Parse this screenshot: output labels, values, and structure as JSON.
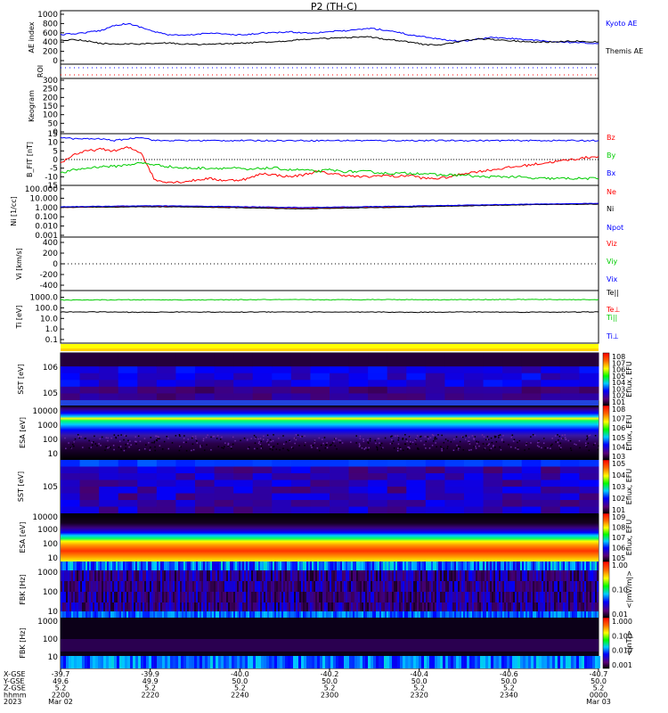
{
  "title": "P2 (TH-C)",
  "chart_data": [
    {
      "type": "line",
      "panel": "ae",
      "ylabel": "AE index",
      "ylim": [
        0,
        1000
      ],
      "yticks": [
        "1000",
        "800",
        "600",
        "400",
        "200",
        "0"
      ],
      "grid": false,
      "series": [
        {
          "name": "Kyoto AE",
          "color": "#0000ff",
          "values": [
            560,
            580,
            610,
            650,
            760,
            800,
            720,
            620,
            560,
            540,
            560,
            600,
            580,
            550,
            560,
            600,
            600,
            620,
            600,
            600,
            630,
            640,
            660,
            700,
            660,
            620,
            550,
            520,
            470,
            430,
            420,
            460,
            500,
            480,
            470,
            440,
            420,
            400,
            390,
            380,
            360
          ]
        },
        {
          "name": "Themis AE",
          "color": "#000000",
          "values": [
            430,
            460,
            420,
            370,
            360,
            360,
            360,
            370,
            380,
            360,
            350,
            350,
            360,
            370,
            380,
            400,
            410,
            430,
            460,
            470,
            480,
            490,
            500,
            510,
            470,
            440,
            400,
            350,
            330,
            380,
            430,
            470,
            460,
            440,
            420,
            400,
            400,
            410,
            420,
            420,
            400
          ]
        }
      ]
    },
    {
      "type": "line",
      "panel": "roi",
      "ylabel": "ROI"
    },
    {
      "type": "line",
      "panel": "keogram",
      "ylabel": "Keogram",
      "ylim": [
        0,
        300
      ],
      "yticks": [
        "300",
        "250",
        "200",
        "150",
        "100",
        "50",
        "0"
      ]
    },
    {
      "type": "line",
      "panel": "bfgm",
      "ylabel": "B_FIT [nT]",
      "ylim": [
        -15,
        15
      ],
      "yticks": [
        "15",
        "10",
        "5",
        "0",
        "-5",
        "-10",
        "-15"
      ],
      "series": [
        {
          "name": "Bz",
          "color": "#ff0000",
          "values": [
            -2,
            3,
            5,
            6,
            5,
            7,
            4,
            -12,
            -13,
            -13,
            -12,
            -11,
            -12,
            -12,
            -11,
            -8,
            -9,
            -10,
            -9,
            -7,
            -8,
            -9,
            -10,
            -10,
            -9,
            -10,
            -9,
            -11,
            -11,
            -10,
            -8,
            -7,
            -6,
            -5,
            -4,
            -3,
            -2,
            -1,
            0,
            1,
            2
          ]
        },
        {
          "name": "By",
          "color": "#00cc00",
          "values": [
            -8,
            -6,
            -5,
            -4,
            -4,
            -3,
            -2,
            -3,
            -4,
            -5,
            -5,
            -5,
            -5,
            -5,
            -6,
            -5,
            -5,
            -6,
            -6,
            -7,
            -6,
            -7,
            -7,
            -7,
            -8,
            -8,
            -8,
            -8,
            -9,
            -9,
            -9,
            -10,
            -10,
            -10,
            -10,
            -11,
            -11,
            -11,
            -11,
            -11,
            -11
          ]
        },
        {
          "name": "Bx",
          "color": "#0000ff",
          "values": [
            13,
            12,
            12,
            12,
            11,
            12,
            13,
            11,
            11,
            11,
            11,
            11,
            11,
            11,
            11,
            11,
            11,
            11,
            11,
            11,
            11,
            11,
            11,
            11,
            11,
            11,
            11,
            11,
            11,
            11,
            11,
            11,
            11,
            11,
            11,
            11,
            11,
            11,
            11,
            11,
            11
          ]
        }
      ]
    },
    {
      "type": "line",
      "panel": "density",
      "ylabel": "Ni [1/cc]",
      "yscale": "log",
      "ylim": [
        0.001,
        100
      ],
      "yticks": [
        "100.000",
        "10.000",
        "1.000",
        "0.100",
        "0.010",
        "0.001"
      ],
      "series": [
        {
          "name": "Ne",
          "color": "#ff0000",
          "values": [
            1.0,
            1.1,
            1.2,
            1.3,
            1.3,
            1.2,
            1.1,
            1.0,
            0.9,
            0.8,
            0.9,
            1.0,
            1.1,
            1.2,
            1.4,
            1.6,
            1.8,
            2.0,
            2.2,
            2.4,
            2.5
          ]
        },
        {
          "name": "Ni",
          "color": "#000000",
          "values": [
            1.0,
            1.1,
            1.1,
            1.2,
            1.2,
            1.1,
            1.0,
            0.9,
            0.8,
            0.7,
            0.8,
            0.9,
            1.0,
            1.1,
            1.3,
            1.5,
            1.7,
            1.9,
            2.1,
            2.2,
            2.3
          ]
        },
        {
          "name": "Npot",
          "color": "#0000ff",
          "values": [
            1.2,
            1.3,
            1.4,
            1.5,
            1.5,
            1.4,
            1.3,
            1.2,
            1.1,
            1.0,
            1.1,
            1.2,
            1.3,
            1.4,
            1.6,
            1.8,
            2.0,
            2.2,
            2.4,
            2.6,
            2.8
          ]
        }
      ]
    },
    {
      "type": "line",
      "panel": "velocity",
      "ylabel": "Vi [km/s]",
      "ylim": [
        -500,
        500
      ],
      "yticks": [
        "400",
        "200",
        "0",
        "-200",
        "-400"
      ],
      "series": [
        {
          "name": "Viz",
          "color": "#ff0000"
        },
        {
          "name": "Viy",
          "color": "#00cc00"
        },
        {
          "name": "Vix",
          "color": "#0000ff"
        }
      ]
    },
    {
      "type": "line",
      "panel": "temperature",
      "ylabel": "Ti [eV]",
      "yscale": "log",
      "ylim": [
        0.05,
        10000
      ],
      "yticks": [
        "1000.0",
        "100.0",
        "10.0",
        "1.0",
        "0.1"
      ],
      "series": [
        {
          "name": "Te||",
          "color": "#000000",
          "values": [
            40,
            42,
            40,
            38,
            40,
            41,
            39,
            40,
            42,
            41,
            40,
            39,
            40,
            38,
            40,
            41,
            40,
            39,
            40,
            40,
            41
          ]
        },
        {
          "name": "Te⊥",
          "color": "#ff0000"
        },
        {
          "name": "Ti||",
          "color": "#00cc00",
          "values": [
            550,
            560,
            570,
            580,
            570,
            560,
            580,
            590,
            600,
            590,
            580,
            600,
            610,
            600,
            590,
            600,
            610,
            620,
            610,
            600,
            600
          ]
        },
        {
          "name": "Ti⊥",
          "color": "#0000ff"
        }
      ]
    },
    {
      "type": "heatmap",
      "panel": "sst-ion",
      "ylabel": "SST [eV]",
      "yticks": [
        "10^6",
        "10^5"
      ],
      "colorbar": {
        "label": "Eflux, EFU",
        "ticks": [
          "10^8",
          "10^7",
          "10^6",
          "10^5",
          "10^4",
          "10^3",
          "10^2",
          "10^1"
        ]
      }
    },
    {
      "type": "heatmap",
      "panel": "esa-ion",
      "ylabel": "ESA [eV]",
      "yticks": [
        "10000",
        "1000",
        "100",
        "10"
      ],
      "colorbar": {
        "label": "Eflux, EFU",
        "ticks": [
          "10^8",
          "10^7",
          "10^6",
          "10^5",
          "10^4",
          "10^3"
        ]
      }
    },
    {
      "type": "heatmap",
      "panel": "sst-electron",
      "ylabel": "SST [eV]",
      "yticks": [
        "10^5"
      ],
      "colorbar": {
        "label": "Eflux, EFU",
        "ticks": [
          "10^5",
          "10^4",
          "10^3",
          "10^2",
          "10^1"
        ]
      }
    },
    {
      "type": "heatmap",
      "panel": "esa-electron",
      "ylabel": "ESA [eV]",
      "yticks": [
        "10000",
        "1000",
        "100",
        "10"
      ],
      "colorbar": {
        "label": "Eflux, EFU",
        "ticks": [
          "10^9",
          "10^8",
          "10^7",
          "10^6",
          "10^5"
        ]
      }
    },
    {
      "type": "heatmap",
      "panel": "fbk-e",
      "ylabel": "FBK [Hz]",
      "yticks": [
        "1000",
        "100",
        "10"
      ],
      "colorbar": {
        "label": "<|mV/m|>",
        "ticks": [
          "1.00",
          "0.10",
          "0.01"
        ]
      }
    },
    {
      "type": "heatmap",
      "panel": "fbk-b",
      "ylabel": "FBK [Hz]",
      "yticks": [
        "1000",
        "100",
        "10"
      ],
      "colorbar": {
        "label": "<|nT|>",
        "ticks": [
          "1.000",
          "0.100",
          "0.010",
          "0.001"
        ]
      }
    }
  ],
  "xaxis": {
    "row_labels": [
      "X-GSE",
      "Y-GSE",
      "Z-GSE",
      "hhmm",
      "2023"
    ],
    "ticks": [
      {
        "x": "-39.7",
        "y": "49.6",
        "z": "5.2",
        "hhmm": "2200",
        "date": "Mar 02"
      },
      {
        "x": "-39.9",
        "y": "49.9",
        "z": "5.2",
        "hhmm": "2220",
        "date": ""
      },
      {
        "x": "-40.0",
        "y": "50.0",
        "z": "5.2",
        "hhmm": "2240",
        "date": ""
      },
      {
        "x": "-40.2",
        "y": "50.0",
        "z": "5.2",
        "hhmm": "2300",
        "date": ""
      },
      {
        "x": "-40.4",
        "y": "50.0",
        "z": "5.2",
        "hhmm": "2320",
        "date": ""
      },
      {
        "x": "-40.6",
        "y": "50.0",
        "z": "5.2",
        "hhmm": "2340",
        "date": ""
      },
      {
        "x": "-40.7",
        "y": "50.0",
        "z": "5.2",
        "hhmm": "0000",
        "date": "Mar 03"
      }
    ]
  },
  "colors": {
    "bz": "#ff0000",
    "by": "#00cc00",
    "bx": "#0000ff",
    "kyoto": "#0000ff",
    "themis": "#000000"
  }
}
